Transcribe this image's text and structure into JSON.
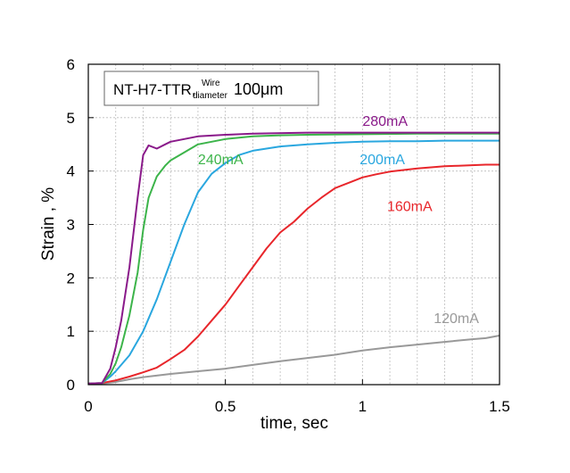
{
  "chart_data": {
    "type": "line",
    "annotation": {
      "main": "NT-H7-TTR,",
      "sup": "Wire",
      "sub": "diameter",
      "value": "100μm"
    },
    "xlabel": "time, sec",
    "ylabel": "Strain , %",
    "xlim": [
      0,
      1.5
    ],
    "ylim": [
      0,
      6
    ],
    "x_ticks": [
      "0",
      "0.5",
      "1",
      "1.5"
    ],
    "y_ticks": [
      "0",
      "1",
      "2",
      "3",
      "4",
      "5",
      "6"
    ],
    "grid": true,
    "series": [
      {
        "name": "120mA",
        "color": "#999999",
        "x": [
          0,
          0.05,
          0.1,
          0.15,
          0.2,
          0.3,
          0.4,
          0.5,
          0.6,
          0.7,
          0.8,
          0.9,
          1.0,
          1.1,
          1.2,
          1.3,
          1.4,
          1.45,
          1.5
        ],
        "y": [
          0.02,
          0.02,
          0.05,
          0.1,
          0.14,
          0.2,
          0.25,
          0.3,
          0.37,
          0.44,
          0.5,
          0.56,
          0.64,
          0.7,
          0.75,
          0.8,
          0.85,
          0.87,
          0.92
        ]
      },
      {
        "name": "160mA",
        "color": "#e8262b",
        "x": [
          0,
          0.05,
          0.1,
          0.15,
          0.2,
          0.25,
          0.3,
          0.35,
          0.4,
          0.45,
          0.5,
          0.55,
          0.6,
          0.65,
          0.7,
          0.75,
          0.8,
          0.85,
          0.9,
          0.95,
          1.0,
          1.05,
          1.1,
          1.15,
          1.2,
          1.25,
          1.3,
          1.35,
          1.4,
          1.45,
          1.5
        ],
        "y": [
          0.02,
          0.03,
          0.08,
          0.15,
          0.23,
          0.32,
          0.48,
          0.65,
          0.9,
          1.2,
          1.5,
          1.85,
          2.2,
          2.55,
          2.85,
          3.05,
          3.3,
          3.5,
          3.68,
          3.78,
          3.88,
          3.94,
          3.99,
          4.02,
          4.05,
          4.07,
          4.09,
          4.1,
          4.11,
          4.12,
          4.12
        ]
      },
      {
        "name": "200mA",
        "color": "#2aa7df",
        "x": [
          0,
          0.05,
          0.08,
          0.1,
          0.15,
          0.2,
          0.25,
          0.3,
          0.35,
          0.4,
          0.45,
          0.5,
          0.55,
          0.6,
          0.7,
          0.8,
          0.9,
          1.0,
          1.1,
          1.2,
          1.3,
          1.4,
          1.5
        ],
        "y": [
          0.02,
          0.03,
          0.15,
          0.25,
          0.55,
          1.0,
          1.6,
          2.3,
          3.0,
          3.6,
          3.95,
          4.15,
          4.3,
          4.38,
          4.46,
          4.5,
          4.53,
          4.55,
          4.56,
          4.56,
          4.57,
          4.57,
          4.57
        ]
      },
      {
        "name": "240mA",
        "color": "#3cb44a",
        "x": [
          0,
          0.05,
          0.08,
          0.1,
          0.12,
          0.15,
          0.18,
          0.2,
          0.22,
          0.25,
          0.28,
          0.3,
          0.35,
          0.4,
          0.5,
          0.6,
          0.7,
          0.8,
          1.0,
          1.2,
          1.5
        ],
        "y": [
          0.02,
          0.03,
          0.2,
          0.4,
          0.7,
          1.3,
          2.1,
          2.9,
          3.5,
          3.9,
          4.1,
          4.2,
          4.35,
          4.5,
          4.6,
          4.65,
          4.67,
          4.68,
          4.69,
          4.7,
          4.7
        ]
      },
      {
        "name": "280mA",
        "color": "#8a1a8a",
        "x": [
          0,
          0.05,
          0.08,
          0.1,
          0.12,
          0.15,
          0.18,
          0.2,
          0.22,
          0.25,
          0.28,
          0.3,
          0.35,
          0.4,
          0.5,
          0.6,
          0.8,
          1.0,
          1.2,
          1.5
        ],
        "y": [
          0.02,
          0.03,
          0.3,
          0.7,
          1.2,
          2.2,
          3.5,
          4.3,
          4.48,
          4.42,
          4.5,
          4.55,
          4.6,
          4.65,
          4.68,
          4.7,
          4.72,
          4.72,
          4.72,
          4.72
        ]
      }
    ]
  }
}
